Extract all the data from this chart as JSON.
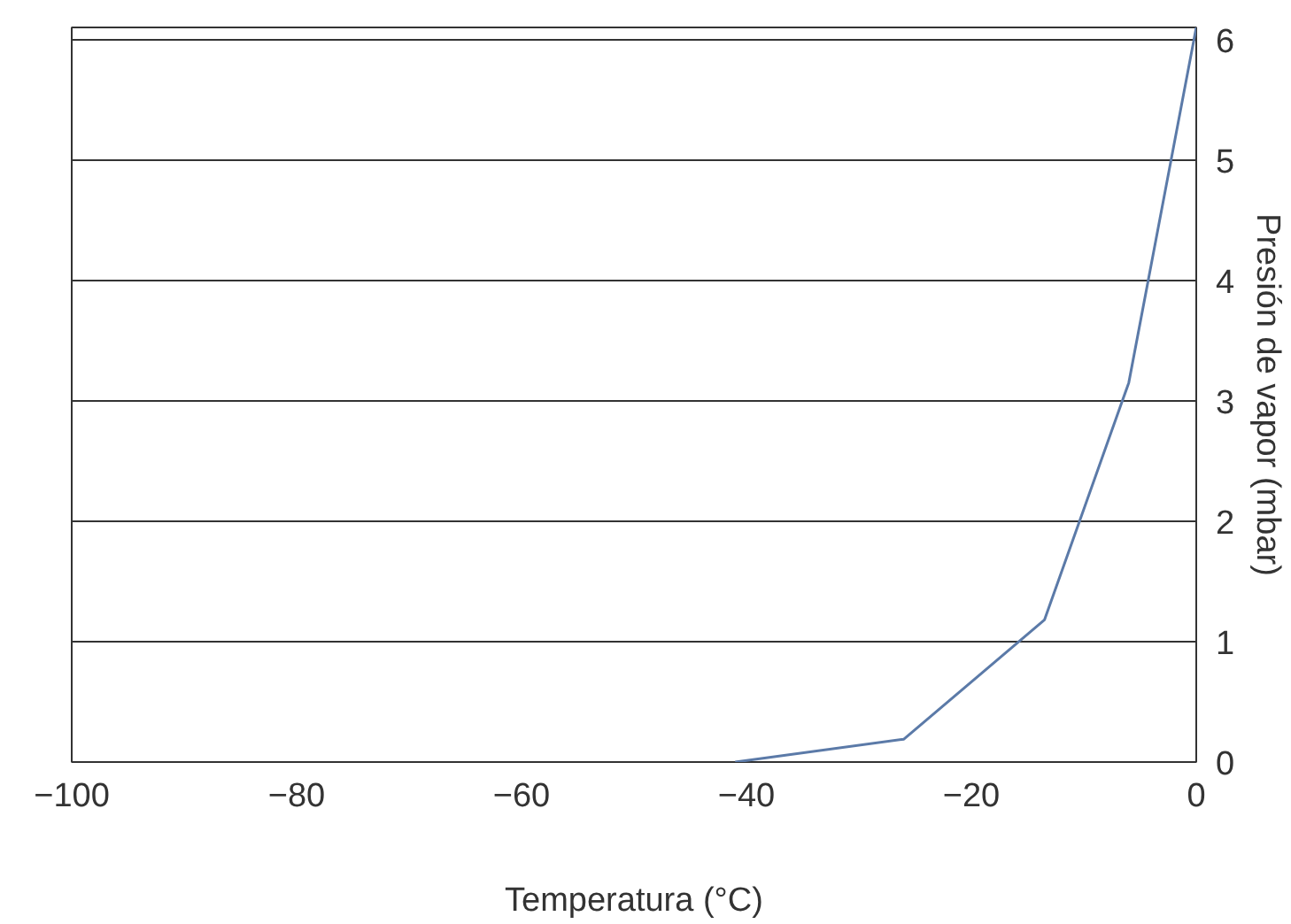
{
  "chart_data": {
    "type": "line",
    "xlabel": "Temperatura (°C)",
    "ylabel": "Presión de vapor (mbar)",
    "x": [
      -41,
      -26,
      -13.5,
      -6,
      0
    ],
    "series": [
      {
        "color": "#5b7aa8",
        "values": [
          0,
          0.19,
          1.18,
          3.15,
          6.1
        ]
      }
    ],
    "xlim": [
      -100,
      0
    ],
    "xticks": [
      -100,
      -80,
      -60,
      -40,
      -20,
      0
    ],
    "ylim": [
      0,
      6.1
    ],
    "yticks": [
      0,
      1,
      2,
      3,
      4,
      5,
      6
    ],
    "grid": "y",
    "marker": "none",
    "line_style": "solid"
  }
}
